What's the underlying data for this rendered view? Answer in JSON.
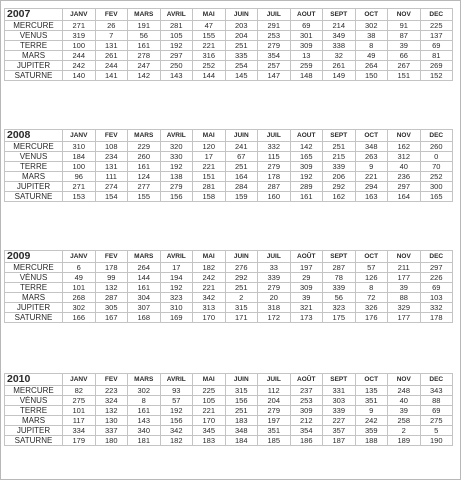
{
  "months": [
    "JANV",
    "FEV",
    "MARS",
    "AVRIL",
    "MAI",
    "JUIN",
    "JUIL",
    "AOUT",
    "SEPT",
    "OCT",
    "NOV",
    "DEC"
  ],
  "years": [
    {
      "year": "2007",
      "months": [
        "JANV",
        "FEV",
        "MARS",
        "AVRIL",
        "MAI",
        "JUIN",
        "JUIL",
        "AOUT",
        "SEPT",
        "OCT",
        "NOV",
        "DEC"
      ],
      "rows": [
        {
          "planet": "MERCURE",
          "values": [
            "271",
            "26",
            "191",
            "281",
            "47",
            "203",
            "291",
            "69",
            "214",
            "302",
            "91",
            "225"
          ]
        },
        {
          "planet": "VENUS",
          "values": [
            "319",
            "7",
            "56",
            "105",
            "155",
            "204",
            "253",
            "301",
            "349",
            "38",
            "87",
            "137"
          ]
        },
        {
          "planet": "TERRE",
          "values": [
            "100",
            "131",
            "161",
            "192",
            "221",
            "251",
            "279",
            "309",
            "338",
            "8",
            "39",
            "69"
          ]
        },
        {
          "planet": "MARS",
          "values": [
            "244",
            "261",
            "278",
            "297",
            "316",
            "335",
            "354",
            "13",
            "32",
            "49",
            "66",
            "81"
          ]
        },
        {
          "planet": "JUPITER",
          "values": [
            "242",
            "244",
            "247",
            "250",
            "252",
            "254",
            "257",
            "259",
            "261",
            "264",
            "267",
            "269"
          ]
        },
        {
          "planet": "SATURNE",
          "values": [
            "140",
            "141",
            "142",
            "143",
            "144",
            "145",
            "147",
            "148",
            "149",
            "150",
            "151",
            "152"
          ]
        }
      ]
    },
    {
      "year": "2008",
      "months": [
        "JANV",
        "FEV",
        "MARS",
        "AVRIL",
        "MAI",
        "JUIN",
        "JUIL",
        "AOUT",
        "SEPT",
        "OCT",
        "NOV",
        "DEC"
      ],
      "rows": [
        {
          "planet": "MERCURE",
          "values": [
            "310",
            "108",
            "229",
            "320",
            "120",
            "241",
            "332",
            "142",
            "251",
            "348",
            "162",
            "260"
          ]
        },
        {
          "planet": "VENUS",
          "values": [
            "184",
            "234",
            "260",
            "330",
            "17",
            "67",
            "115",
            "165",
            "215",
            "263",
            "312",
            "0"
          ]
        },
        {
          "planet": "TERRE",
          "values": [
            "100",
            "131",
            "161",
            "192",
            "221",
            "251",
            "279",
            "309",
            "339",
            "9",
            "40",
            "70"
          ]
        },
        {
          "planet": "MARS",
          "values": [
            "96",
            "111",
            "124",
            "138",
            "151",
            "164",
            "178",
            "192",
            "206",
            "221",
            "236",
            "252"
          ]
        },
        {
          "planet": "JUPITER",
          "values": [
            "271",
            "274",
            "277",
            "279",
            "281",
            "284",
            "287",
            "289",
            "292",
            "294",
            "297",
            "300"
          ]
        },
        {
          "planet": "SATURNE",
          "values": [
            "153",
            "154",
            "155",
            "156",
            "158",
            "159",
            "160",
            "161",
            "162",
            "163",
            "164",
            "165"
          ]
        }
      ]
    },
    {
      "year": "2009",
      "months": [
        "JANV",
        "FEV",
        "MARS",
        "AVRIL",
        "MAI",
        "JUIN",
        "JUIL",
        "AOÛT",
        "SEPT",
        "OCT",
        "NOV",
        "DEC"
      ],
      "rows": [
        {
          "planet": "MERCURE",
          "values": [
            "6",
            "178",
            "264",
            "17",
            "182",
            "276",
            "33",
            "197",
            "287",
            "57",
            "211",
            "297"
          ]
        },
        {
          "planet": "VÉNUS",
          "values": [
            "49",
            "99",
            "144",
            "194",
            "242",
            "292",
            "339",
            "29",
            "78",
            "126",
            "177",
            "226"
          ]
        },
        {
          "planet": "TERRE",
          "values": [
            "101",
            "132",
            "161",
            "192",
            "221",
            "251",
            "279",
            "309",
            "339",
            "8",
            "39",
            "69"
          ]
        },
        {
          "planet": "MARS",
          "values": [
            "268",
            "287",
            "304",
            "323",
            "342",
            "2",
            "20",
            "39",
            "56",
            "72",
            "88",
            "103"
          ]
        },
        {
          "planet": "JUPITER",
          "values": [
            "302",
            "305",
            "307",
            "310",
            "313",
            "315",
            "318",
            "321",
            "323",
            "326",
            "329",
            "332"
          ]
        },
        {
          "planet": "SATURNE",
          "values": [
            "166",
            "167",
            "168",
            "169",
            "170",
            "171",
            "172",
            "173",
            "175",
            "176",
            "177",
            "178"
          ]
        }
      ]
    },
    {
      "year": "2010",
      "months": [
        "JANV",
        "FEV",
        "MARS",
        "AVRIL",
        "MAI",
        "JUIN",
        "JUIL",
        "AOÛT",
        "SEPT",
        "OCT",
        "NOV",
        "DEC"
      ],
      "rows": [
        {
          "planet": "MERCURE",
          "values": [
            "82",
            "223",
            "302",
            "93",
            "225",
            "315",
            "112",
            "237",
            "331",
            "135",
            "248",
            "343"
          ]
        },
        {
          "planet": "VÉNUS",
          "values": [
            "275",
            "324",
            "8",
            "57",
            "105",
            "156",
            "204",
            "253",
            "303",
            "351",
            "40",
            "88"
          ]
        },
        {
          "planet": "TERRE",
          "values": [
            "101",
            "132",
            "161",
            "192",
            "221",
            "251",
            "279",
            "309",
            "339",
            "9",
            "39",
            "69"
          ]
        },
        {
          "planet": "MARS",
          "values": [
            "117",
            "130",
            "143",
            "156",
            "170",
            "183",
            "197",
            "212",
            "227",
            "242",
            "258",
            "275"
          ]
        },
        {
          "planet": "JUPITER",
          "values": [
            "334",
            "337",
            "340",
            "342",
            "345",
            "348",
            "351",
            "354",
            "357",
            "359",
            "2",
            "5"
          ]
        },
        {
          "planet": "SATURNE",
          "values": [
            "179",
            "180",
            "181",
            "182",
            "183",
            "184",
            "185",
            "186",
            "187",
            "188",
            "189",
            "190"
          ]
        }
      ]
    }
  ]
}
